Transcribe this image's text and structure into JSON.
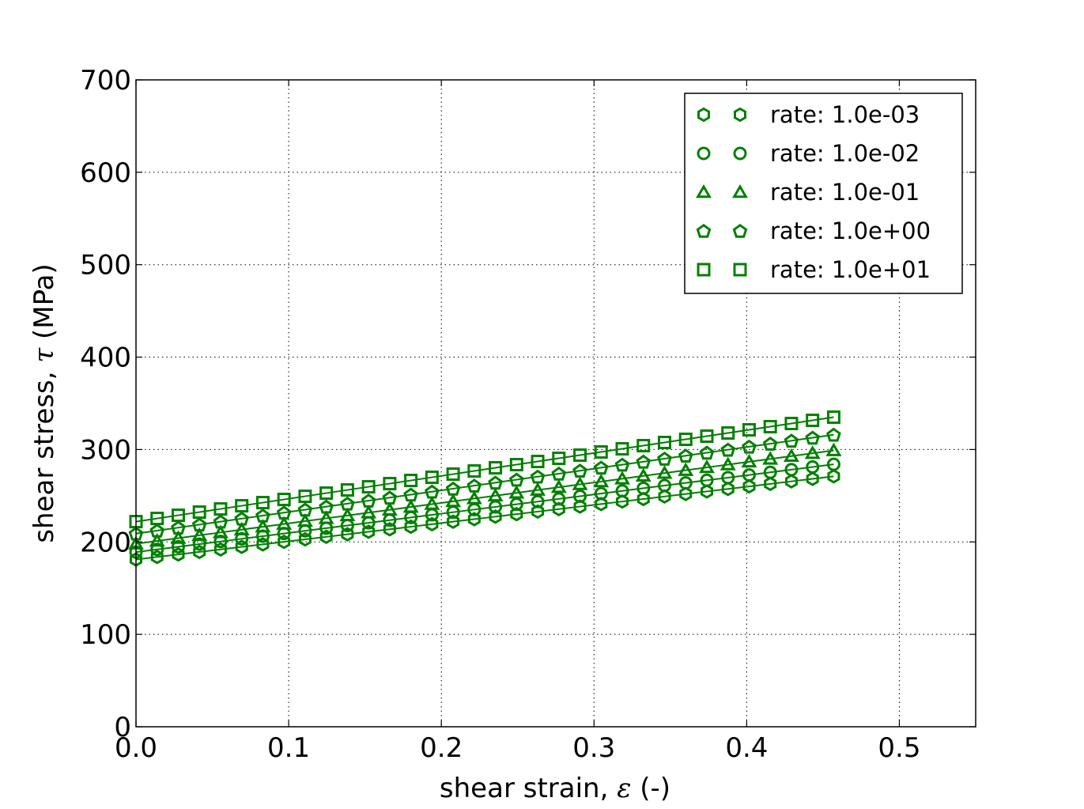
{
  "chart_data": {
    "type": "line",
    "xlabel_text": "shear strain, ",
    "xlabel_symbol": "ε",
    "xlabel_unit": " (-)",
    "ylabel_text": "shear stress, ",
    "ylabel_symbol": "τ",
    "ylabel_unit": " (MPa)",
    "xlim": [
      0.0,
      0.55
    ],
    "ylim": [
      0,
      700
    ],
    "xticks": [
      0.0,
      0.1,
      0.2,
      0.3,
      0.4,
      0.5
    ],
    "xtick_labels": [
      "0.0",
      "0.1",
      "0.2",
      "0.3",
      "0.4",
      "0.5"
    ],
    "yticks": [
      0,
      100,
      200,
      300,
      400,
      500,
      600,
      700
    ],
    "ytick_labels": [
      "0",
      "100",
      "200",
      "300",
      "400",
      "500",
      "600",
      "700"
    ],
    "grid": true,
    "legend_position": "top-right",
    "marker_color": "#008000",
    "x_start": 0.0,
    "x_end": 0.457,
    "n_points": 34,
    "series": [
      {
        "name": "rate: 1.0e-03",
        "marker": "hexagon",
        "y_start": 181,
        "y_end": 271
      },
      {
        "name": "rate: 1.0e-02",
        "marker": "circle",
        "y_start": 189,
        "y_end": 284
      },
      {
        "name": "rate: 1.0e-01",
        "marker": "triangle",
        "y_start": 198,
        "y_end": 299
      },
      {
        "name": "rate: 1.0e+00",
        "marker": "pentagon",
        "y_start": 209,
        "y_end": 316
      },
      {
        "name": "rate: 1.0e+01",
        "marker": "square",
        "y_start": 222,
        "y_end": 335
      }
    ]
  }
}
